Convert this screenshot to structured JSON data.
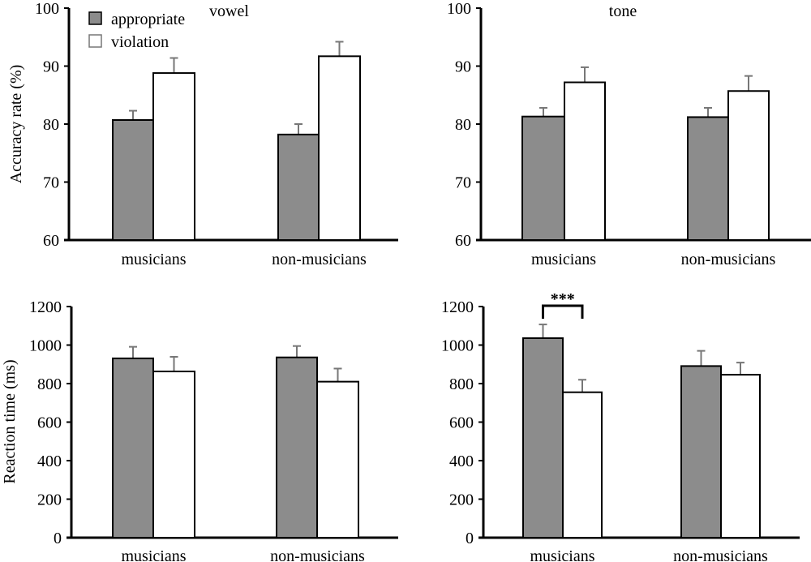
{
  "legend": {
    "items": [
      {
        "label": "appropriate",
        "color": "#8c8c8c"
      },
      {
        "label": "violation",
        "color": "#ffffff"
      }
    ]
  },
  "chart_data": [
    {
      "type": "bar",
      "title": "vowel",
      "xlabel": "",
      "ylabel": "Accuracy rate (%)",
      "ylim": [
        60,
        100
      ],
      "yticks": [
        60,
        70,
        80,
        90,
        100
      ],
      "categories": [
        "musicians",
        "non-musicians"
      ],
      "series": [
        {
          "name": "appropriate",
          "values": [
            80.7,
            78.2
          ],
          "errors": [
            1.6,
            1.8
          ]
        },
        {
          "name": "violation",
          "values": [
            88.8,
            91.7
          ],
          "errors": [
            2.6,
            2.5
          ]
        }
      ],
      "legend": "top-left",
      "grid": false
    },
    {
      "type": "bar",
      "title": "tone",
      "xlabel": "",
      "ylabel": "",
      "ylim": [
        60,
        100
      ],
      "yticks": [
        60,
        70,
        80,
        90,
        100
      ],
      "categories": [
        "musicians",
        "non-musicians"
      ],
      "series": [
        {
          "name": "appropriate",
          "values": [
            81.3,
            81.2
          ],
          "errors": [
            1.5,
            1.6
          ]
        },
        {
          "name": "violation",
          "values": [
            87.2,
            85.7
          ],
          "errors": [
            2.6,
            2.6
          ]
        }
      ],
      "grid": false
    },
    {
      "type": "bar",
      "title": "",
      "xlabel": "",
      "ylabel": "Reaction time (ms)",
      "ylim": [
        0,
        1200
      ],
      "yticks": [
        0,
        200,
        400,
        600,
        800,
        1000,
        1200
      ],
      "categories": [
        "musicians",
        "non-musicians"
      ],
      "series": [
        {
          "name": "appropriate",
          "values": [
            931,
            936
          ],
          "errors": [
            60,
            59
          ]
        },
        {
          "name": "violation",
          "values": [
            863,
            810
          ],
          "errors": [
            76,
            68
          ]
        }
      ],
      "grid": false
    },
    {
      "type": "bar",
      "title": "",
      "xlabel": "",
      "ylabel": "",
      "ylim": [
        0,
        1200
      ],
      "yticks": [
        0,
        200,
        400,
        600,
        800,
        1000,
        1200
      ],
      "categories": [
        "musicians",
        "non-musicians"
      ],
      "series": [
        {
          "name": "appropriate",
          "values": [
            1036,
            891
          ],
          "errors": [
            71,
            79
          ]
        },
        {
          "name": "violation",
          "values": [
            755,
            846
          ],
          "errors": [
            65,
            63
          ]
        }
      ],
      "annotations": [
        {
          "text": "***",
          "category": "musicians",
          "between": [
            "appropriate",
            "violation"
          ]
        }
      ],
      "grid": false
    }
  ]
}
